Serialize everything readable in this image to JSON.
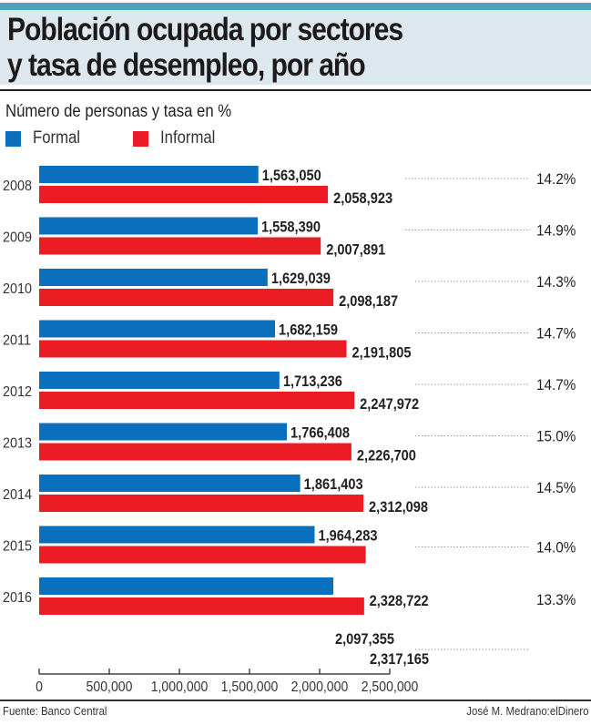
{
  "header": {
    "title_line1": "Población ocupada por sectores",
    "title_line2": "y tasa de desempleo, por año"
  },
  "subtitle": "Número de personas y tasa en %",
  "legend": [
    {
      "label": "Formal",
      "color": "#0a6fbd"
    },
    {
      "label": "Informal",
      "color": "#ec1c24"
    }
  ],
  "footer": {
    "source": "Fuente: Banco Central",
    "credit": "José M. Medrano:elDinero"
  },
  "chart_data": {
    "type": "bar",
    "orientation": "horizontal",
    "title": "Población ocupada por sectores y tasa de desempleo, por año",
    "subtitle": "Número de personas y tasa en %",
    "categories": [
      "2008",
      "2009",
      "2010",
      "2011",
      "2012",
      "2013",
      "2014",
      "2015",
      "2016"
    ],
    "series": [
      {
        "name": "Formal",
        "color": "#0a6fbd",
        "values": [
          1563050,
          1558390,
          1629039,
          1682159,
          1713236,
          1766408,
          1861403,
          1964283,
          2097355
        ]
      },
      {
        "name": "Informal",
        "color": "#ec1c24",
        "values": [
          2058923,
          2007891,
          2098187,
          2191805,
          2247972,
          2226700,
          2312098,
          2328722,
          2317165
        ]
      }
    ],
    "unemployment_rate": [
      "14.2%",
      "14.9%",
      "14.3%",
      "14.7%",
      "14.7%",
      "15.0%",
      "14.5%",
      "14.0%",
      "13.3%"
    ],
    "data_labels": {
      "formal": [
        "1,563,050",
        "1,558,390",
        "1,629,039",
        "1,682,159",
        "1,713,236",
        "1,766,408",
        "1,861,403",
        "1,964,283",
        "2,097,355"
      ],
      "informal": [
        "2,058,923",
        "2,007,891",
        "2,098,187",
        "2,191,805",
        "2,247,972",
        "2,226,700",
        "2,312,098",
        "2,328,722",
        "2,317,165"
      ]
    },
    "x_ticks": [
      0,
      500000,
      1000000,
      1500000,
      2000000,
      2500000
    ],
    "x_tick_labels": [
      "0",
      "500,000",
      "1,000,000",
      "1,500,000",
      "2,000,000",
      "2,500,000"
    ],
    "xlim": [
      0,
      2500000
    ],
    "xlabel": "",
    "ylabel": "",
    "grid": false,
    "legend_position": "top-left"
  }
}
